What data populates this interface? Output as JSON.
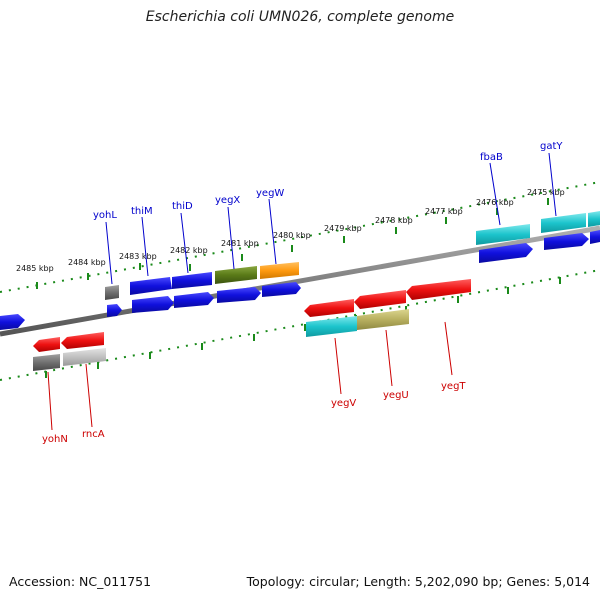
{
  "title": "Escherichia coli UMN026, complete genome",
  "footer": {
    "accession": "Accession: NC_011751",
    "topology": "Topology: circular; Length: 5,202,090 bp; Genes: 5,014"
  },
  "ticks": [
    "2485 kbp",
    "2484 kbp",
    "2483 kbp",
    "2482 kbp",
    "2481 kbp",
    "2480 kbp",
    "2479 kbp",
    "2478 kbp",
    "2477 kbp",
    "2476 kbp",
    "2475 kbp"
  ],
  "genes_top": [
    "yohL",
    "thiM",
    "thiD",
    "yegX",
    "yegW",
    "fbaB",
    "gatY"
  ],
  "genes_bottom": [
    "yohN",
    "rncA",
    "yegV",
    "yegU",
    "yegT"
  ],
  "colors": {
    "blue": "#1010dd",
    "red": "#ee1111",
    "cyan": "#1cc4cc",
    "olive": "#5a7a18",
    "orange": "#ff9a10",
    "khaki": "#b8b060",
    "gray": "#777777",
    "lightgray": "#c0c0c0",
    "tick": "#1a8a1a",
    "backbone": "#808080"
  }
}
